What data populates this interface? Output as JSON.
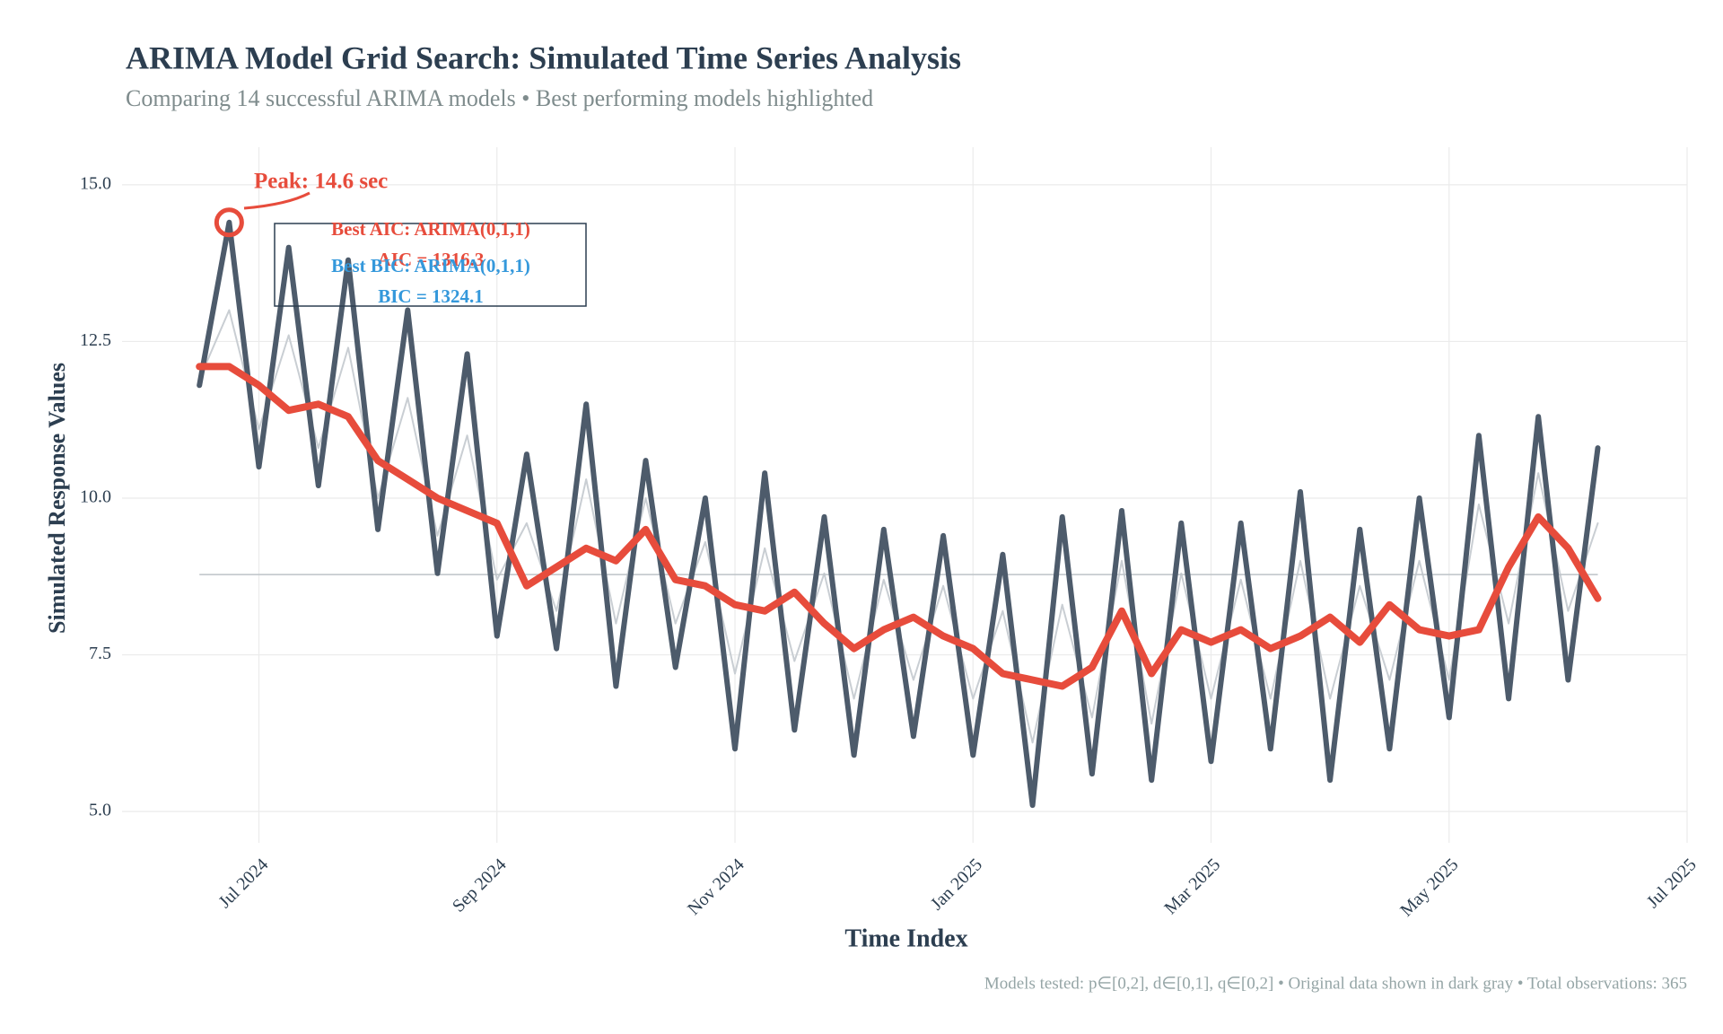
{
  "chart_data": {
    "type": "line",
    "title": "ARIMA Model Grid Search: Simulated Time Series Analysis",
    "subtitle": "Comparing 14 successful ARIMA models • Best performing models highlighted",
    "x_label": "Time Index",
    "y_label": "Simulated Response Values",
    "caption": "Models tested: p∈[0,2], d∈[0,1], q∈[0,2] • Original data shown in dark gray • Total observations: 365",
    "x": [
      -0.5,
      -0.25,
      0,
      0.25,
      0.5,
      0.75,
      1,
      1.25,
      1.5,
      1.75,
      2,
      2.25,
      2.5,
      2.75,
      3,
      3.25,
      3.5,
      3.75,
      4,
      4.25,
      4.5,
      4.75,
      5,
      5.25,
      5.5,
      5.75,
      6,
      6.25,
      6.5,
      6.75,
      7,
      7.25,
      7.5,
      7.75,
      8,
      8.25,
      8.5,
      8.75,
      9,
      9.25,
      9.5,
      9.75,
      10,
      10.25,
      10.5,
      10.75,
      11,
      11.25
    ],
    "series": [
      {
        "color": "#c9ced3",
        "width": 2,
        "values": [
          11.9,
          13.0,
          11.1,
          12.6,
          10.8,
          12.4,
          10.0,
          11.6,
          9.4,
          11.0,
          8.7,
          9.6,
          8.2,
          10.3,
          8.0,
          10.0,
          8.0,
          9.3,
          7.2,
          9.2,
          7.4,
          8.8,
          6.8,
          8.7,
          7.1,
          8.6,
          6.8,
          8.2,
          6.1,
          8.3,
          6.5,
          9.0,
          6.4,
          8.8,
          6.8,
          8.7,
          6.8,
          9.0,
          6.8,
          8.6,
          7.1,
          9.0,
          7.1,
          9.9,
          8.0,
          10.4,
          8.2,
          9.6
        ]
      },
      {
        "color": "#4d5b6b",
        "width": 6,
        "values": [
          11.8,
          14.4,
          10.5,
          14.0,
          10.2,
          13.8,
          9.5,
          13.0,
          8.8,
          12.3,
          7.8,
          10.7,
          7.6,
          11.5,
          7.0,
          10.6,
          7.3,
          10.0,
          6.0,
          10.4,
          6.3,
          9.7,
          5.9,
          9.5,
          6.2,
          9.4,
          5.9,
          9.1,
          5.1,
          9.7,
          5.6,
          9.8,
          5.5,
          9.6,
          5.8,
          9.6,
          6.0,
          10.1,
          5.5,
          9.5,
          6.0,
          10.0,
          6.5,
          11.0,
          6.8,
          11.3,
          7.1,
          10.8
        ]
      },
      {
        "color": "#e74c3c",
        "width": 8,
        "values": [
          12.1,
          12.1,
          11.8,
          11.4,
          11.5,
          11.3,
          10.6,
          10.3,
          10.0,
          9.8,
          9.6,
          8.6,
          8.9,
          9.2,
          9.0,
          9.5,
          8.7,
          8.6,
          8.3,
          8.2,
          8.5,
          8.0,
          7.6,
          7.9,
          8.1,
          7.8,
          7.6,
          7.2,
          7.1,
          7.0,
          7.3,
          8.2,
          7.2,
          7.9,
          7.7,
          7.9,
          7.6,
          7.8,
          8.1,
          7.7,
          8.3,
          7.9,
          7.8,
          7.9,
          8.9,
          9.7,
          9.2,
          8.4
        ]
      }
    ],
    "reference_line": 8.78,
    "xlim": [
      -1.15,
      12.0
    ],
    "ylim": [
      4.5,
      15.6
    ],
    "xticks": [
      {
        "value": 0,
        "label": "Jul 2024"
      },
      {
        "value": 2,
        "label": "Sep 2024"
      },
      {
        "value": 4,
        "label": "Nov 2024"
      },
      {
        "value": 6,
        "label": "Jan 2025"
      },
      {
        "value": 8,
        "label": "Mar 2025"
      },
      {
        "value": 10,
        "label": "May 2025"
      },
      {
        "value": 12,
        "label": "Jul 2025"
      }
    ],
    "yticks": [
      {
        "value": 5,
        "label": "5.0"
      },
      7.5,
      {
        "value": 10,
        "label": "10.0"
      },
      12.5,
      {
        "value": 15,
        "label": "15.0"
      }
    ],
    "grid": true,
    "peak_label": "Peak: 14.6 sec",
    "annotation_box": [
      "Best AIC: ARIMA(0,1,1)",
      "AIC = 1316.3",
      "Best BIC: ARIMA(0,1,1)",
      "BIC = 1324.1"
    ]
  }
}
